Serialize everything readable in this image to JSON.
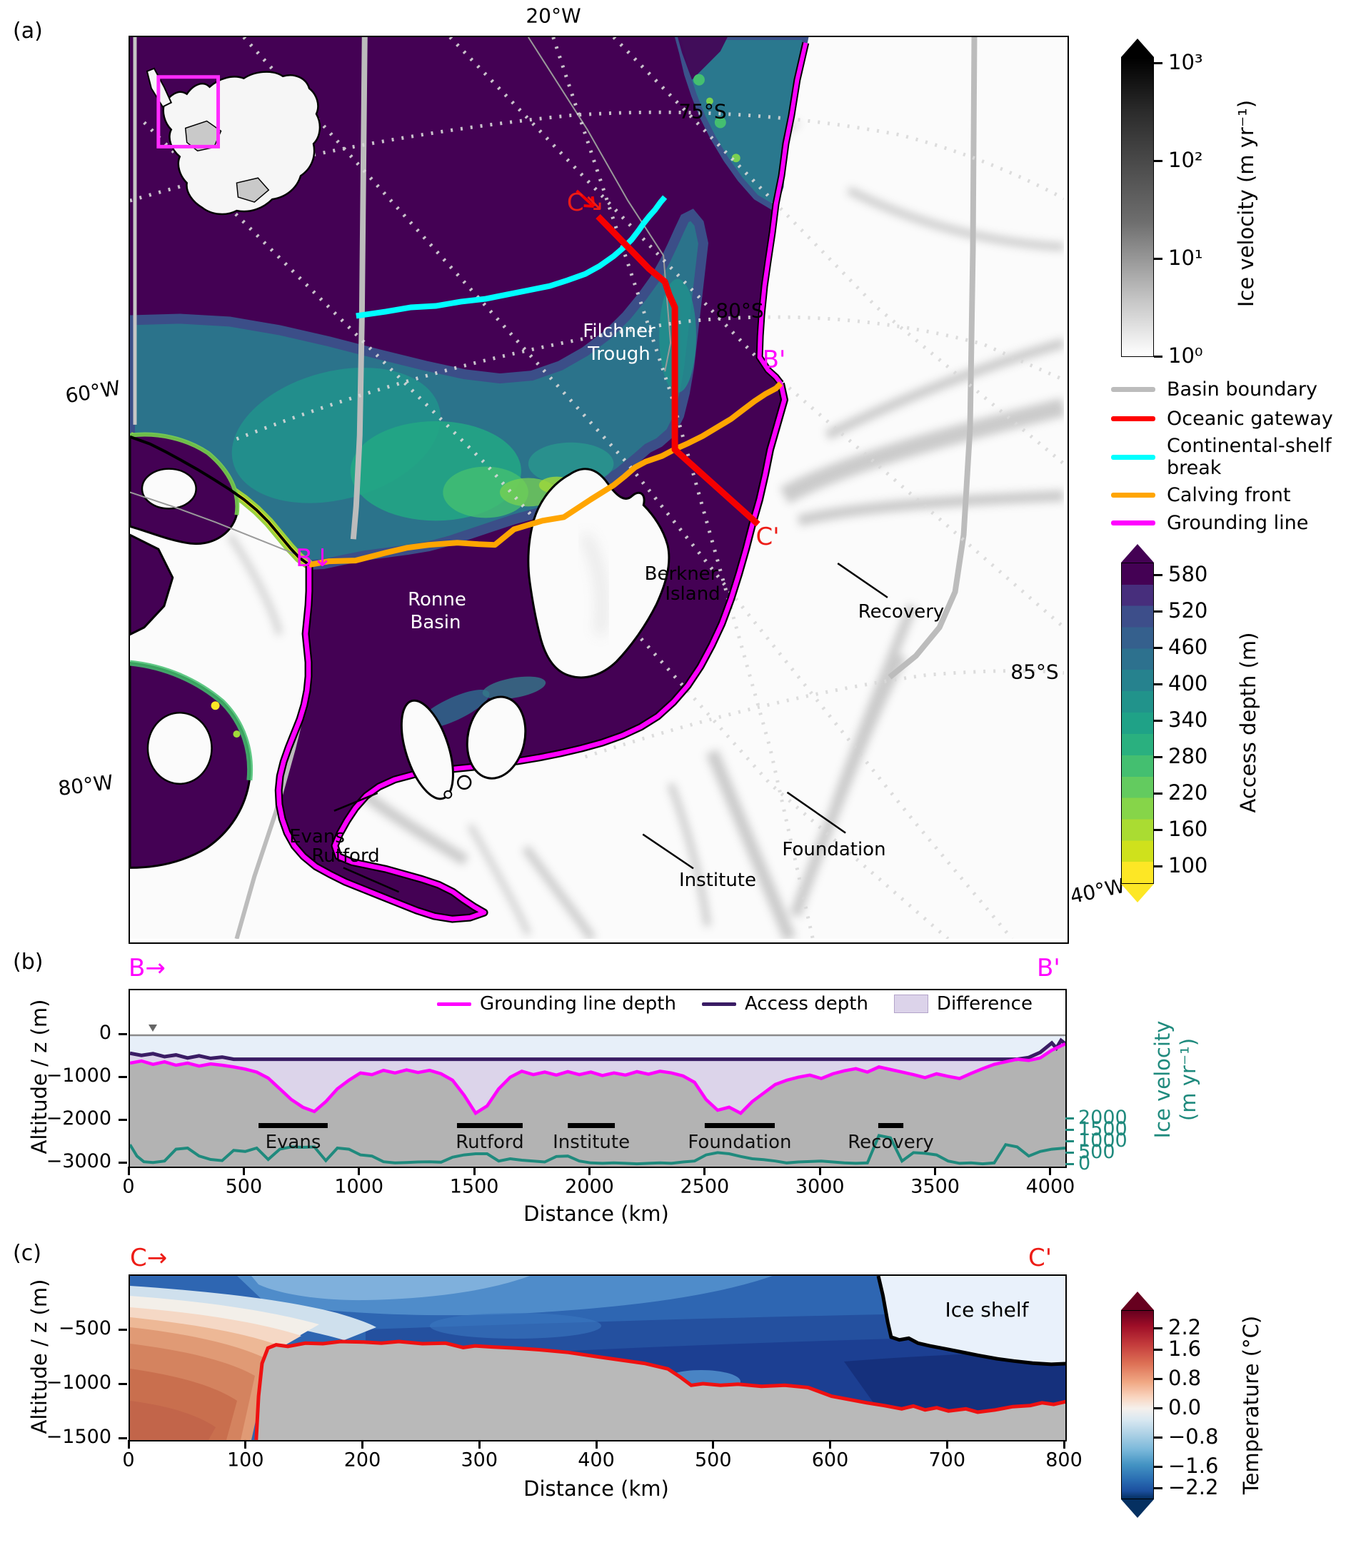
{
  "panel_a": {
    "label": "(a)",
    "lon_top": "20°W",
    "lat_75": "75°S",
    "lat_80": "80°S",
    "lat_85": "85°S",
    "lon_60": "60°W",
    "lon_80": "80°W",
    "lon_40": "40°W",
    "filchner_1": "Filchner",
    "filchner_2": "Trough",
    "ronne_1": "Ronne",
    "ronne_2": "Basin",
    "berkner_1": "Berkner",
    "berkner_2": "Island",
    "evans": "Evans",
    "rutford": "Rutford",
    "institute": "Institute",
    "foundation": "Foundation",
    "recovery": "Recovery",
    "marker_c": "C↘",
    "marker_c_end": "C'",
    "marker_b": "B↓",
    "marker_b_end": "B'",
    "legend": [
      {
        "label": "Basin boundary",
        "color": "#bcbcbc"
      },
      {
        "label": "Oceanic gateway",
        "color": "#ff0000"
      },
      {
        "label": "Continental-shelf break",
        "color": "#00ffff"
      },
      {
        "label": "Calving front",
        "color": "#ffa500"
      },
      {
        "label": "Grounding line",
        "color": "#ff00ff"
      }
    ],
    "velocity_colorbar": {
      "label": "Ice velocity (m yr⁻¹)",
      "ticks": [
        "10³",
        "10²",
        "10¹",
        "10⁰"
      ]
    },
    "access_colorbar": {
      "label": "Access depth (m)",
      "ticks": [
        "580",
        "520",
        "460",
        "400",
        "340",
        "280",
        "220",
        "160",
        "100"
      ]
    }
  },
  "panel_b": {
    "label": "(b)",
    "marker_start": "B→",
    "marker_end": "B'",
    "ylabel": "Altitude / z (m)",
    "xlabel": "Distance (km)",
    "yticks": [
      "0",
      "−1000",
      "−2000",
      "−3000"
    ],
    "xticks": [
      "0",
      "500",
      "1000",
      "1500",
      "2000",
      "2500",
      "3000",
      "3500",
      "4000"
    ],
    "legend": [
      {
        "label": "Grounding line depth",
        "color": "#ff00ff",
        "type": "line"
      },
      {
        "label": "Access depth",
        "color": "#3a1c64",
        "type": "line"
      },
      {
        "label": "Difference",
        "color": "#dcd3ea",
        "type": "patch"
      }
    ],
    "right_axis": {
      "line1": "Ice velocity",
      "line2": "(m yr⁻¹)",
      "ticks": [
        "2000",
        "1500",
        "1000",
        "500",
        "0"
      ],
      "color": "#1f8a7d"
    },
    "glacier_bars": [
      {
        "label": "Evans",
        "x0": 558,
        "x1": 858
      },
      {
        "label": "Rutford",
        "x0": 1419,
        "x1": 1704
      },
      {
        "label": "Institute",
        "x0": 1900,
        "x1": 2104
      },
      {
        "label": "Foundation",
        "x0": 2494,
        "x1": 2798
      },
      {
        "label": "Recovery",
        "x0": 3247,
        "x1": 3356
      }
    ]
  },
  "panel_c": {
    "label": "(c)",
    "marker_start": "C→",
    "marker_end": "C'",
    "ylabel": "Altitude / z (m)",
    "xlabel": "Distance (km)",
    "yticks": [
      "−500",
      "−1000",
      "−1500"
    ],
    "xticks": [
      "0",
      "100",
      "200",
      "300",
      "400",
      "500",
      "600",
      "700",
      "800"
    ],
    "ice_shelf": "Ice shelf",
    "temp_colorbar": {
      "label": "Temperature (°C)",
      "ticks": [
        "2.2",
        "1.6",
        "0.8",
        "0.0",
        "−0.8",
        "−1.6",
        "−2.2"
      ]
    }
  },
  "chart_data": [
    {
      "type": "line",
      "name": "grounding_line_depth",
      "panel": "b",
      "xlabel": "Distance (km)",
      "ylabel": "Altitude / z (m)",
      "color": "#ff00ff",
      "xlim": [
        0,
        4059
      ],
      "points": [
        [
          0,
          -650
        ],
        [
          50,
          -600
        ],
        [
          100,
          -680
        ],
        [
          150,
          -620
        ],
        [
          200,
          -700
        ],
        [
          250,
          -650
        ],
        [
          300,
          -720
        ],
        [
          350,
          -670
        ],
        [
          400,
          -700
        ],
        [
          450,
          -740
        ],
        [
          500,
          -790
        ],
        [
          550,
          -860
        ],
        [
          600,
          -1000
        ],
        [
          650,
          -1250
        ],
        [
          700,
          -1500
        ],
        [
          750,
          -1680
        ],
        [
          800,
          -1780
        ],
        [
          850,
          -1550
        ],
        [
          900,
          -1250
        ],
        [
          950,
          -1050
        ],
        [
          1000,
          -880
        ],
        [
          1050,
          -920
        ],
        [
          1100,
          -820
        ],
        [
          1150,
          -880
        ],
        [
          1200,
          -810
        ],
        [
          1250,
          -870
        ],
        [
          1300,
          -820
        ],
        [
          1350,
          -900
        ],
        [
          1400,
          -1050
        ],
        [
          1450,
          -1400
        ],
        [
          1500,
          -1820
        ],
        [
          1550,
          -1650
        ],
        [
          1600,
          -1250
        ],
        [
          1650,
          -980
        ],
        [
          1700,
          -840
        ],
        [
          1750,
          -920
        ],
        [
          1800,
          -860
        ],
        [
          1850,
          -930
        ],
        [
          1900,
          -850
        ],
        [
          1950,
          -920
        ],
        [
          2000,
          -860
        ],
        [
          2050,
          -940
        ],
        [
          2100,
          -880
        ],
        [
          2150,
          -930
        ],
        [
          2200,
          -850
        ],
        [
          2250,
          -910
        ],
        [
          2300,
          -840
        ],
        [
          2350,
          -880
        ],
        [
          2400,
          -950
        ],
        [
          2450,
          -1100
        ],
        [
          2500,
          -1500
        ],
        [
          2550,
          -1750
        ],
        [
          2600,
          -1680
        ],
        [
          2650,
          -1820
        ],
        [
          2700,
          -1550
        ],
        [
          2750,
          -1350
        ],
        [
          2800,
          -1150
        ],
        [
          2850,
          -1050
        ],
        [
          2900,
          -980
        ],
        [
          2950,
          -930
        ],
        [
          3000,
          -1010
        ],
        [
          3050,
          -900
        ],
        [
          3100,
          -830
        ],
        [
          3150,
          -780
        ],
        [
          3200,
          -860
        ],
        [
          3250,
          -740
        ],
        [
          3300,
          -800
        ],
        [
          3350,
          -860
        ],
        [
          3400,
          -920
        ],
        [
          3450,
          -990
        ],
        [
          3500,
          -900
        ],
        [
          3550,
          -960
        ],
        [
          3600,
          -1010
        ],
        [
          3650,
          -890
        ],
        [
          3700,
          -780
        ],
        [
          3750,
          -680
        ],
        [
          3800,
          -620
        ],
        [
          3850,
          -560
        ],
        [
          3900,
          -590
        ],
        [
          3950,
          -530
        ],
        [
          4000,
          -350
        ],
        [
          4059,
          -200
        ]
      ]
    },
    {
      "type": "line",
      "name": "access_depth",
      "panel": "b",
      "color": "#3a1c64",
      "xlim": [
        0,
        4059
      ],
      "points": [
        [
          0,
          -420
        ],
        [
          50,
          -470
        ],
        [
          100,
          -430
        ],
        [
          150,
          -500
        ],
        [
          200,
          -460
        ],
        [
          250,
          -530
        ],
        [
          300,
          -480
        ],
        [
          350,
          -540
        ],
        [
          400,
          -510
        ],
        [
          450,
          -560
        ],
        [
          3850,
          -560
        ],
        [
          3900,
          -520
        ],
        [
          3950,
          -400
        ],
        [
          4000,
          -180
        ],
        [
          4020,
          -300
        ],
        [
          4040,
          -120
        ],
        [
          4059,
          -200
        ]
      ]
    },
    {
      "type": "line",
      "name": "ice_velocity_profile",
      "panel": "b",
      "axis": "right",
      "ylabel": "Ice velocity (m yr⁻¹)",
      "ylim": [
        0,
        2300
      ],
      "color": "#1f8a7d",
      "points": [
        [
          0,
          900
        ],
        [
          30,
          400
        ],
        [
          60,
          150
        ],
        [
          100,
          120
        ],
        [
          150,
          180
        ],
        [
          200,
          700
        ],
        [
          250,
          750
        ],
        [
          300,
          400
        ],
        [
          350,
          250
        ],
        [
          400,
          200
        ],
        [
          450,
          650
        ],
        [
          500,
          600
        ],
        [
          550,
          750
        ],
        [
          600,
          250
        ],
        [
          650,
          700
        ],
        [
          700,
          800
        ],
        [
          750,
          780
        ],
        [
          800,
          800
        ],
        [
          850,
          200
        ],
        [
          900,
          750
        ],
        [
          950,
          700
        ],
        [
          1000,
          450
        ],
        [
          1050,
          400
        ],
        [
          1100,
          150
        ],
        [
          1150,
          100
        ],
        [
          1200,
          120
        ],
        [
          1250,
          140
        ],
        [
          1300,
          150
        ],
        [
          1350,
          130
        ],
        [
          1400,
          350
        ],
        [
          1450,
          450
        ],
        [
          1500,
          500
        ],
        [
          1550,
          500
        ],
        [
          1600,
          180
        ],
        [
          1650,
          280
        ],
        [
          1700,
          220
        ],
        [
          1750,
          180
        ],
        [
          1800,
          140
        ],
        [
          1850,
          380
        ],
        [
          1900,
          400
        ],
        [
          1950,
          180
        ],
        [
          2000,
          100
        ],
        [
          2050,
          80
        ],
        [
          2100,
          100
        ],
        [
          2150,
          80
        ],
        [
          2200,
          60
        ],
        [
          2250,
          80
        ],
        [
          2300,
          100
        ],
        [
          2350,
          80
        ],
        [
          2400,
          140
        ],
        [
          2450,
          180
        ],
        [
          2500,
          450
        ],
        [
          2550,
          550
        ],
        [
          2600,
          500
        ],
        [
          2650,
          380
        ],
        [
          2700,
          280
        ],
        [
          2750,
          240
        ],
        [
          2800,
          180
        ],
        [
          2850,
          100
        ],
        [
          2900,
          140
        ],
        [
          2950,
          160
        ],
        [
          3000,
          180
        ],
        [
          3050,
          140
        ],
        [
          3100,
          100
        ],
        [
          3150,
          80
        ],
        [
          3200,
          100
        ],
        [
          3250,
          1300
        ],
        [
          3300,
          1200
        ],
        [
          3350,
          180
        ],
        [
          3400,
          550
        ],
        [
          3450,
          520
        ],
        [
          3500,
          450
        ],
        [
          3550,
          180
        ],
        [
          3600,
          80
        ],
        [
          3650,
          100
        ],
        [
          3700,
          60
        ],
        [
          3750,
          100
        ],
        [
          3800,
          900
        ],
        [
          3850,
          800
        ],
        [
          3900,
          400
        ],
        [
          3950,
          600
        ],
        [
          4000,
          700
        ],
        [
          4059,
          750
        ]
      ]
    },
    {
      "type": "line",
      "name": "seafloor_section",
      "panel": "c",
      "xlabel": "Distance (km)",
      "ylabel": "Altitude / z (m)",
      "color": "#ee1111",
      "xlim": [
        0,
        806
      ],
      "points": [
        [
          108,
          -1500
        ],
        [
          110,
          -1100
        ],
        [
          113,
          -800
        ],
        [
          118,
          -660
        ],
        [
          125,
          -630
        ],
        [
          135,
          -645
        ],
        [
          150,
          -615
        ],
        [
          165,
          -620
        ],
        [
          180,
          -600
        ],
        [
          200,
          -605
        ],
        [
          215,
          -615
        ],
        [
          230,
          -600
        ],
        [
          250,
          -620
        ],
        [
          270,
          -615
        ],
        [
          285,
          -655
        ],
        [
          295,
          -640
        ],
        [
          310,
          -650
        ],
        [
          330,
          -660
        ],
        [
          350,
          -675
        ],
        [
          375,
          -700
        ],
        [
          400,
          -740
        ],
        [
          420,
          -770
        ],
        [
          440,
          -800
        ],
        [
          460,
          -850
        ],
        [
          470,
          -920
        ],
        [
          480,
          -1000
        ],
        [
          490,
          -985
        ],
        [
          505,
          -1000
        ],
        [
          520,
          -990
        ],
        [
          540,
          -1010
        ],
        [
          560,
          -1000
        ],
        [
          580,
          -1020
        ],
        [
          600,
          -1100
        ],
        [
          615,
          -1130
        ],
        [
          630,
          -1160
        ],
        [
          645,
          -1185
        ],
        [
          660,
          -1215
        ],
        [
          670,
          -1190
        ],
        [
          680,
          -1225
        ],
        [
          690,
          -1205
        ],
        [
          700,
          -1235
        ],
        [
          715,
          -1215
        ],
        [
          725,
          -1245
        ],
        [
          740,
          -1225
        ],
        [
          755,
          -1195
        ],
        [
          770,
          -1185
        ],
        [
          780,
          -1160
        ],
        [
          790,
          -1175
        ],
        [
          800,
          -1150
        ],
        [
          806,
          -1155
        ]
      ]
    },
    {
      "type": "line",
      "name": "ice_shelf_base",
      "panel": "c",
      "color": "#000000",
      "xlim": [
        640,
        806
      ],
      "points": [
        [
          640,
          0
        ],
        [
          644,
          -180
        ],
        [
          648,
          -420
        ],
        [
          651,
          -560
        ],
        [
          658,
          -585
        ],
        [
          666,
          -570
        ],
        [
          674,
          -615
        ],
        [
          684,
          -640
        ],
        [
          698,
          -668
        ],
        [
          712,
          -698
        ],
        [
          726,
          -728
        ],
        [
          741,
          -757
        ],
        [
          756,
          -778
        ],
        [
          772,
          -797
        ],
        [
          788,
          -808
        ],
        [
          806,
          -800
        ]
      ]
    }
  ]
}
